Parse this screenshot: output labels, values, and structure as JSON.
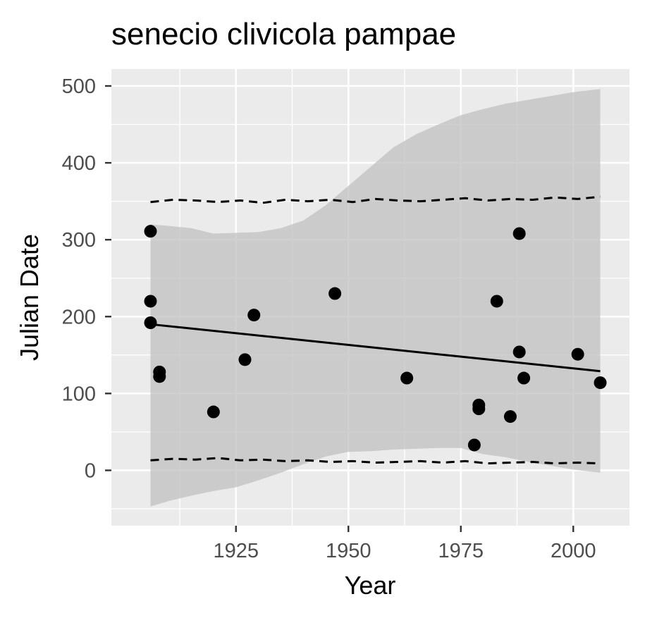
{
  "chart_data": {
    "type": "scatter",
    "title": "senecio clivicola pampae",
    "xlabel": "Year",
    "ylabel": "Julian Date",
    "xlim": [
      1897.3,
      2012.5
    ],
    "ylim": [
      -72,
      522
    ],
    "x_ticks": [
      1925,
      1950,
      1975,
      2000
    ],
    "y_ticks": [
      0,
      100,
      200,
      300,
      400,
      500
    ],
    "grid": true,
    "legend": "none",
    "colors": {
      "panel_background": "#EBEBEB",
      "grid": "#FFFFFF",
      "points": "#000000",
      "ribbon": "#BEBEBE",
      "axis_text": "#4D4D4D"
    },
    "points": [
      {
        "x": 1906,
        "y": 311
      },
      {
        "x": 1906,
        "y": 220
      },
      {
        "x": 1906,
        "y": 192
      },
      {
        "x": 1908,
        "y": 128
      },
      {
        "x": 1908,
        "y": 122
      },
      {
        "x": 1920,
        "y": 76
      },
      {
        "x": 1927,
        "y": 144
      },
      {
        "x": 1929,
        "y": 202
      },
      {
        "x": 1947,
        "y": 230
      },
      {
        "x": 1963,
        "y": 120
      },
      {
        "x": 1978,
        "y": 33
      },
      {
        "x": 1979,
        "y": 85
      },
      {
        "x": 1979,
        "y": 80
      },
      {
        "x": 1983,
        "y": 220
      },
      {
        "x": 1986,
        "y": 70
      },
      {
        "x": 1988,
        "y": 308
      },
      {
        "x": 1988,
        "y": 154
      },
      {
        "x": 1989,
        "y": 120
      },
      {
        "x": 2001,
        "y": 151
      },
      {
        "x": 2006,
        "y": 114
      }
    ],
    "fit_line": [
      {
        "x": 1906,
        "y": 190
      },
      {
        "x": 2006,
        "y": 129
      }
    ],
    "confidence_band": {
      "x": [
        1906,
        1910,
        1915,
        1920,
        1925,
        1930,
        1935,
        1940,
        1945,
        1950,
        1955,
        1960,
        1965,
        1970,
        1975,
        1980,
        1985,
        1990,
        1995,
        2000,
        2006
      ],
      "upper": [
        320,
        318,
        315,
        308,
        309,
        310,
        315,
        325,
        345,
        370,
        395,
        420,
        437,
        450,
        462,
        470,
        477,
        482,
        487,
        492,
        496
      ],
      "lower": [
        -47,
        -40,
        -33,
        -27,
        -22,
        -13,
        -3,
        8,
        18,
        24,
        25,
        27,
        28,
        29,
        29,
        21,
        17,
        11,
        6,
        1,
        -3
      ]
    },
    "upper_dashed": {
      "x": [
        1906,
        1911,
        1916,
        1921,
        1926,
        1931,
        1936,
        1941,
        1946,
        1951,
        1956,
        1961,
        1966,
        1971,
        1976,
        1981,
        1986,
        1991,
        1996,
        2001,
        2006
      ],
      "y": [
        349,
        352,
        351,
        349,
        351,
        348,
        352,
        350,
        352,
        349,
        353,
        351,
        350,
        352,
        354,
        351,
        353,
        352,
        355,
        353,
        356
      ]
    },
    "lower_dashed": {
      "x": [
        1906,
        1911,
        1916,
        1921,
        1926,
        1931,
        1936,
        1941,
        1946,
        1951,
        1956,
        1961,
        1966,
        1971,
        1976,
        1981,
        1986,
        1991,
        1996,
        2001,
        2006
      ],
      "y": [
        13,
        15,
        14,
        16,
        13,
        14,
        12,
        13,
        11,
        12,
        10,
        11,
        12,
        10,
        12,
        9,
        10,
        11,
        9,
        10,
        9
      ]
    }
  }
}
